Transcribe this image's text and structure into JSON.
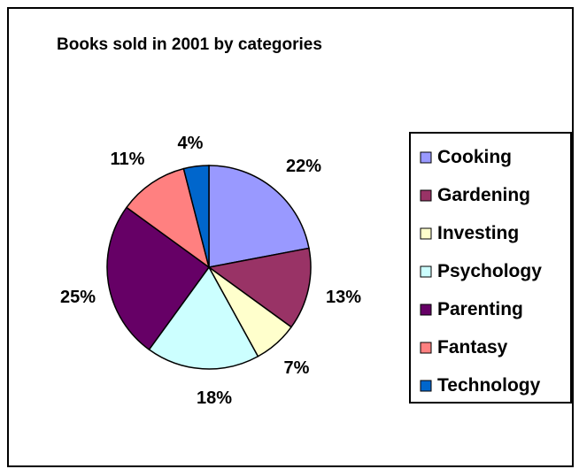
{
  "chart_data": {
    "type": "pie",
    "title": "Books sold in 2001 by categories",
    "categories": [
      "Cooking",
      "Gardening",
      "Investing",
      "Psychology",
      "Parenting",
      "Fantasy",
      "Technology"
    ],
    "values": [
      22,
      13,
      7,
      18,
      25,
      11,
      4
    ],
    "value_labels": [
      "22%",
      "13%",
      "7%",
      "18%",
      "25%",
      "11%",
      "4%"
    ],
    "colors": [
      "#9999ff",
      "#993366",
      "#ffffcc",
      "#ccffff",
      "#660066",
      "#ff8080",
      "#0066cc"
    ],
    "start_angle_deg": 0,
    "direction": "clockwise",
    "legend": "right",
    "grid": false
  }
}
